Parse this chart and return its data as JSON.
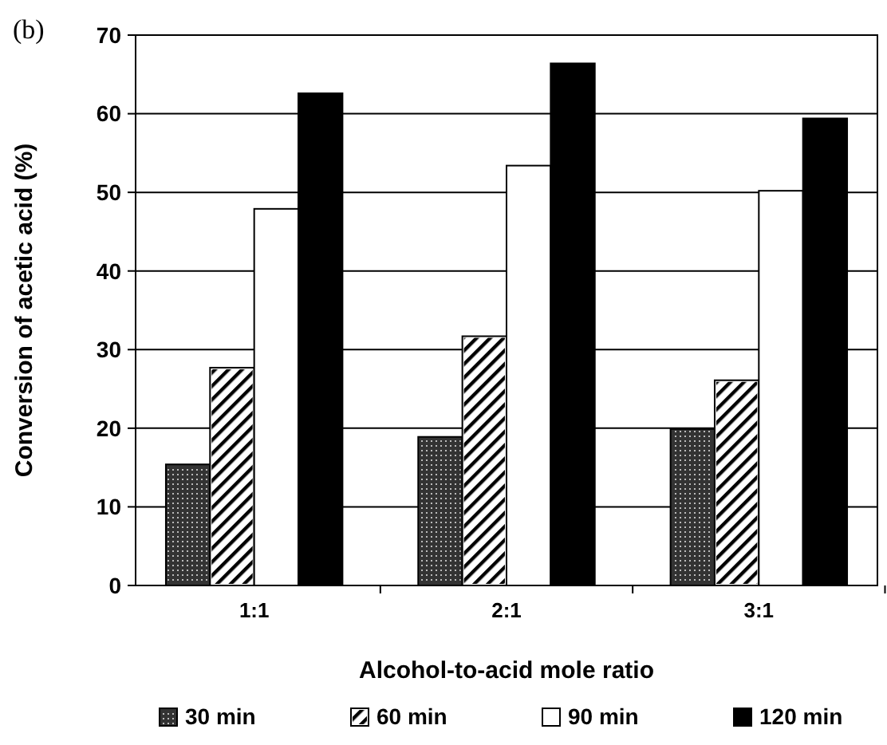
{
  "chart_data": {
    "type": "bar",
    "xlabel": "Alcohol-to-acid mole ratio",
    "ylabel": "Conversion of acetic acid (%)",
    "annotations": [
      "(b)"
    ],
    "categories": [
      "1:1",
      "2:1",
      "3:1"
    ],
    "series": [
      {
        "name": "30 min",
        "color": "#333333",
        "values": [
          15.4,
          18.9,
          19.9
        ]
      },
      {
        "name": "60 min",
        "color": "#ffffff",
        "values": [
          27.7,
          31.7,
          26.1
        ]
      },
      {
        "name": "90 min",
        "color": "#ffffff",
        "values": [
          47.9,
          53.4,
          50.2
        ]
      },
      {
        "name": "120 min",
        "color": "#000000",
        "values": [
          62.6,
          66.4,
          59.4
        ]
      }
    ],
    "ylim": [
      0,
      70
    ],
    "yticks": [
      0,
      10,
      20,
      30,
      40,
      50,
      60,
      70
    ],
    "grid": "y",
    "legend": "bottom"
  }
}
